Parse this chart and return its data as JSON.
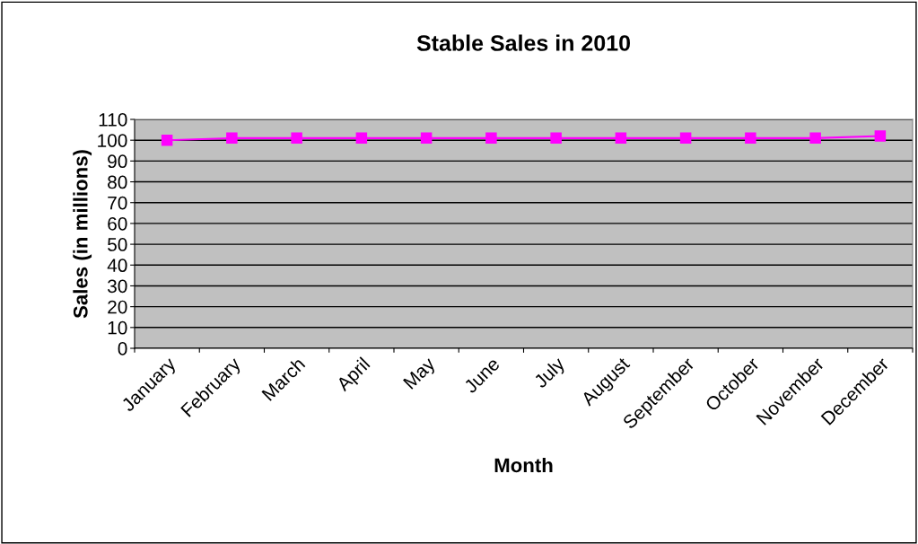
{
  "chart_data": {
    "type": "line",
    "title": "Stable Sales in 2010",
    "xlabel": "Month",
    "ylabel": "Sales (in millions)",
    "categories": [
      "January",
      "February",
      "March",
      "April",
      "May",
      "June",
      "July",
      "August",
      "September",
      "October",
      "November",
      "December"
    ],
    "series": [
      {
        "color": "#ff00ff",
        "values": [
          100,
          101,
          101,
          101,
          101,
          101,
          101,
          101,
          101,
          101,
          101,
          102
        ]
      }
    ],
    "ylim": [
      0,
      110
    ],
    "yticks": [
      0,
      10,
      20,
      30,
      40,
      50,
      60,
      70,
      80,
      90,
      100,
      110
    ],
    "grid": "y",
    "marker": "square",
    "line_style": "solid"
  }
}
